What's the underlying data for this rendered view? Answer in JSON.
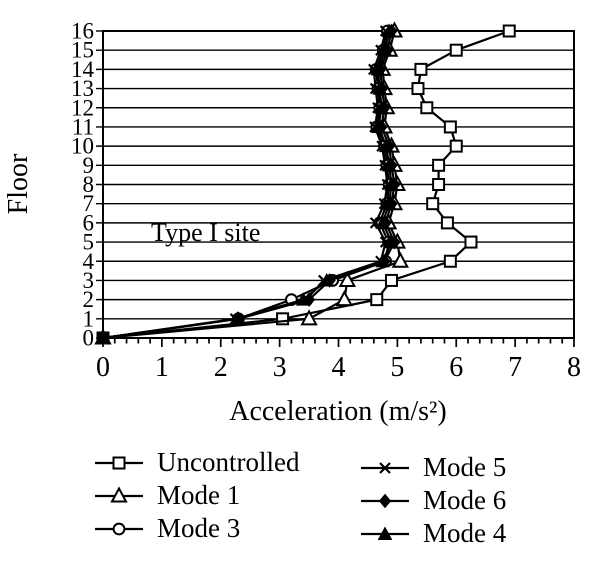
{
  "page": {
    "background": "#ffffff",
    "foreground": "#000000"
  },
  "chart_data": {
    "type": "line",
    "title": "",
    "xlabel": "Acceleration (m/s²)",
    "ylabel": "Floor",
    "annotation": {
      "text": "Type I site",
      "x_data": 0.8,
      "floor": 5.5
    },
    "xlim": [
      0,
      8
    ],
    "ylim": [
      0,
      16
    ],
    "x_tick_labels": [
      "0",
      "1",
      "2",
      "3",
      "4",
      "5",
      "6",
      "7",
      "8"
    ],
    "x_minor_tick_step": 0.2,
    "y_tick_labels": [
      "0",
      "1",
      "2",
      "3",
      "4",
      "5",
      "6",
      "7",
      "8",
      "9",
      "10",
      "11",
      "12",
      "13",
      "14",
      "15",
      "16"
    ],
    "grid": "horizontal",
    "legend_position": "bottom-two-columns",
    "line_color": "#000000",
    "floors": [
      0,
      1,
      2,
      3,
      4,
      5,
      6,
      7,
      8,
      9,
      10,
      11,
      12,
      13,
      14,
      15,
      16
    ],
    "series": [
      {
        "name": "Uncontrolled",
        "marker": "open-square",
        "legend_column": 1,
        "values": [
          0,
          3.05,
          4.65,
          4.9,
          5.9,
          6.25,
          5.85,
          5.6,
          5.7,
          5.7,
          6.0,
          5.9,
          5.5,
          5.35,
          5.4,
          6.0,
          6.9
        ]
      },
      {
        "name": "Mode 1",
        "marker": "open-triangle",
        "legend_column": 1,
        "values": [
          0,
          3.5,
          4.1,
          4.15,
          5.05,
          5.0,
          4.85,
          4.95,
          5.0,
          4.95,
          4.9,
          4.78,
          4.82,
          4.78,
          4.75,
          4.87,
          4.95
        ]
      },
      {
        "name": "Mode 3",
        "marker": "open-circle",
        "legend_column": 1,
        "values": [
          0,
          2.3,
          3.2,
          3.9,
          4.8,
          4.85,
          4.7,
          4.82,
          4.86,
          4.82,
          4.78,
          4.65,
          4.7,
          4.67,
          4.64,
          4.76,
          4.83
        ]
      },
      {
        "name": "Mode 5",
        "marker": "x-cross",
        "legend_column": 2,
        "values": [
          0,
          2.25,
          3.45,
          3.75,
          4.72,
          4.8,
          4.63,
          4.78,
          4.83,
          4.79,
          4.74,
          4.62,
          4.67,
          4.63,
          4.6,
          4.72,
          4.8
        ]
      },
      {
        "name": "Mode 6",
        "marker": "filled-diamond",
        "legend_column": 2,
        "values": [
          0,
          2.3,
          3.5,
          3.85,
          4.78,
          4.95,
          4.8,
          4.9,
          4.95,
          4.9,
          4.86,
          4.73,
          4.78,
          4.74,
          4.71,
          4.83,
          4.9
        ]
      },
      {
        "name": "Mode 4",
        "marker": "filled-triangle",
        "legend_column": 2,
        "values": [
          0,
          2.28,
          3.4,
          3.8,
          4.75,
          4.9,
          4.75,
          4.86,
          4.9,
          4.86,
          4.81,
          4.68,
          4.73,
          4.7,
          4.67,
          4.79,
          4.86
        ]
      }
    ]
  }
}
